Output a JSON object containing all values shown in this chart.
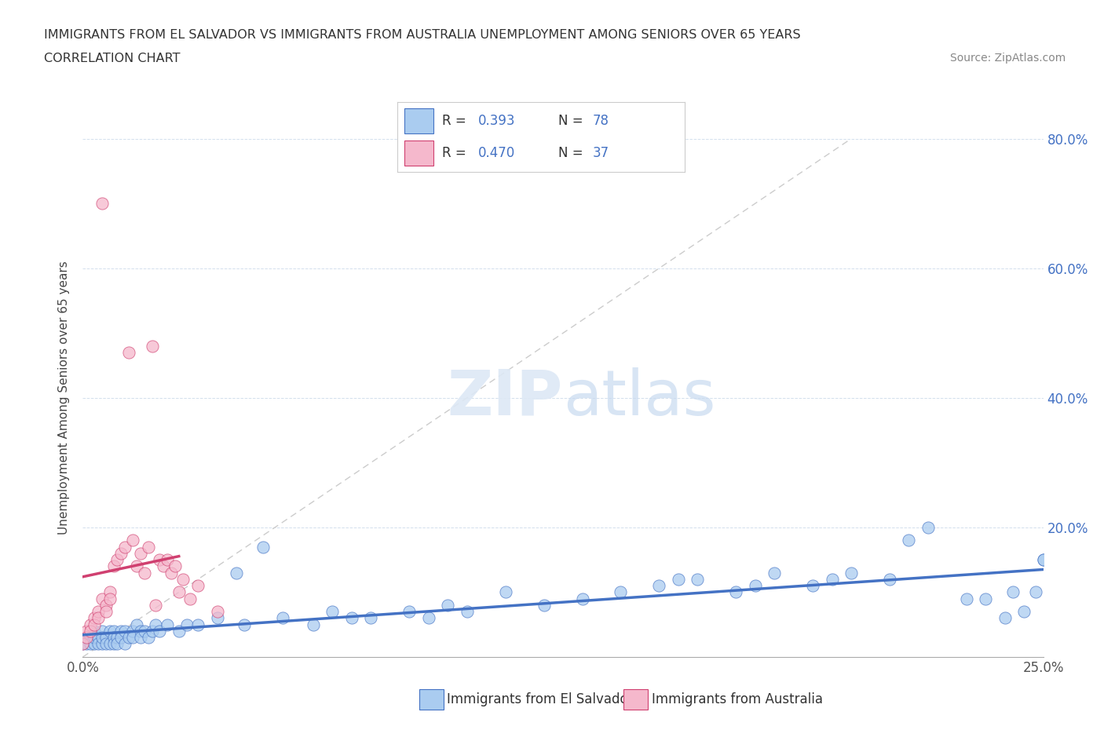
{
  "title_line1": "IMMIGRANTS FROM EL SALVADOR VS IMMIGRANTS FROM AUSTRALIA UNEMPLOYMENT AMONG SENIORS OVER 65 YEARS",
  "title_line2": "CORRELATION CHART",
  "source_text": "Source: ZipAtlas.com",
  "ylabel": "Unemployment Among Seniors over 65 years",
  "watermark_zip": "ZIP",
  "watermark_atlas": "atlas",
  "legend_label1": "Immigrants from El Salvador",
  "legend_label2": "Immigrants from Australia",
  "R1": "0.393",
  "N1": "78",
  "R2": "0.470",
  "N2": "37",
  "color1": "#aaccf0",
  "color2": "#f5b8cc",
  "line_color1": "#4472c4",
  "line_color2": "#d04070",
  "trend_dashed_color": "#cccccc",
  "xlim": [
    0.0,
    0.25
  ],
  "ylim": [
    0.0,
    0.8
  ],
  "el_salvador_x": [
    0.0,
    0.001,
    0.001,
    0.002,
    0.002,
    0.003,
    0.003,
    0.003,
    0.004,
    0.004,
    0.005,
    0.005,
    0.005,
    0.006,
    0.006,
    0.007,
    0.007,
    0.008,
    0.008,
    0.008,
    0.009,
    0.009,
    0.01,
    0.01,
    0.011,
    0.011,
    0.012,
    0.013,
    0.013,
    0.014,
    0.015,
    0.015,
    0.016,
    0.017,
    0.018,
    0.019,
    0.02,
    0.022,
    0.025,
    0.027,
    0.03,
    0.035,
    0.04,
    0.042,
    0.047,
    0.052,
    0.06,
    0.065,
    0.07,
    0.075,
    0.085,
    0.09,
    0.095,
    0.1,
    0.11,
    0.12,
    0.13,
    0.14,
    0.15,
    0.155,
    0.16,
    0.17,
    0.175,
    0.18,
    0.19,
    0.195,
    0.2,
    0.21,
    0.215,
    0.22,
    0.23,
    0.235,
    0.24,
    0.242,
    0.245,
    0.248,
    0.25,
    0.25
  ],
  "el_salvador_y": [
    0.02,
    0.03,
    0.02,
    0.03,
    0.02,
    0.04,
    0.02,
    0.03,
    0.03,
    0.02,
    0.04,
    0.02,
    0.03,
    0.03,
    0.02,
    0.04,
    0.02,
    0.04,
    0.03,
    0.02,
    0.03,
    0.02,
    0.04,
    0.03,
    0.04,
    0.02,
    0.03,
    0.04,
    0.03,
    0.05,
    0.04,
    0.03,
    0.04,
    0.03,
    0.04,
    0.05,
    0.04,
    0.05,
    0.04,
    0.05,
    0.05,
    0.06,
    0.13,
    0.05,
    0.17,
    0.06,
    0.05,
    0.07,
    0.06,
    0.06,
    0.07,
    0.06,
    0.08,
    0.07,
    0.1,
    0.08,
    0.09,
    0.1,
    0.11,
    0.12,
    0.12,
    0.1,
    0.11,
    0.13,
    0.11,
    0.12,
    0.13,
    0.12,
    0.18,
    0.2,
    0.09,
    0.09,
    0.06,
    0.1,
    0.07,
    0.1,
    0.15,
    0.15
  ],
  "australia_x": [
    0.0,
    0.001,
    0.001,
    0.002,
    0.002,
    0.003,
    0.003,
    0.004,
    0.004,
    0.005,
    0.005,
    0.006,
    0.006,
    0.007,
    0.007,
    0.008,
    0.009,
    0.01,
    0.011,
    0.012,
    0.013,
    0.014,
    0.015,
    0.016,
    0.017,
    0.018,
    0.019,
    0.02,
    0.021,
    0.022,
    0.023,
    0.024,
    0.025,
    0.026,
    0.028,
    0.03,
    0.035
  ],
  "australia_y": [
    0.02,
    0.04,
    0.03,
    0.05,
    0.04,
    0.06,
    0.05,
    0.07,
    0.06,
    0.7,
    0.09,
    0.08,
    0.07,
    0.1,
    0.09,
    0.14,
    0.15,
    0.16,
    0.17,
    0.47,
    0.18,
    0.14,
    0.16,
    0.13,
    0.17,
    0.48,
    0.08,
    0.15,
    0.14,
    0.15,
    0.13,
    0.14,
    0.1,
    0.12,
    0.09,
    0.11,
    0.07
  ]
}
